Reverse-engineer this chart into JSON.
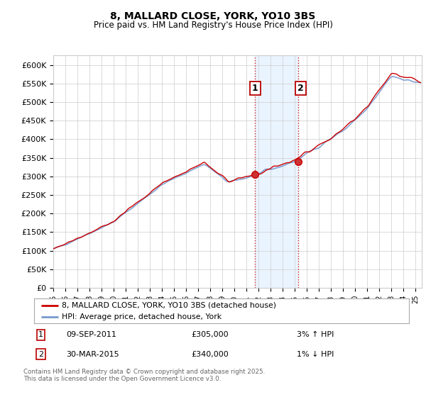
{
  "title": "8, MALLARD CLOSE, YORK, YO10 3BS",
  "subtitle": "Price paid vs. HM Land Registry's House Price Index (HPI)",
  "ylabel_ticks": [
    "£0",
    "£50K",
    "£100K",
    "£150K",
    "£200K",
    "£250K",
    "£300K",
    "£350K",
    "£400K",
    "£450K",
    "£500K",
    "£550K",
    "£600K"
  ],
  "ytick_values": [
    0,
    50000,
    100000,
    150000,
    200000,
    250000,
    300000,
    350000,
    400000,
    450000,
    500000,
    550000,
    600000
  ],
  "ylim": [
    0,
    625000
  ],
  "xlim_start": 1995.0,
  "xlim_end": 2025.5,
  "xtick_labels": [
    "95",
    "96",
    "97",
    "98",
    "99",
    "00",
    "01",
    "02",
    "03",
    "04",
    "05",
    "06",
    "07",
    "08",
    "09",
    "10",
    "11",
    "12",
    "13",
    "14",
    "15",
    "16",
    "17",
    "18",
    "19",
    "20",
    "21",
    "22",
    "23",
    "24",
    "25"
  ],
  "xticks": [
    1995,
    1996,
    1997,
    1998,
    1999,
    2000,
    2001,
    2002,
    2003,
    2004,
    2005,
    2006,
    2007,
    2008,
    2009,
    2010,
    2011,
    2012,
    2013,
    2014,
    2015,
    2016,
    2017,
    2018,
    2019,
    2020,
    2021,
    2022,
    2023,
    2024,
    2025
  ],
  "marker1_x": 2011.69,
  "marker1_y": 305000,
  "marker1_label": "1",
  "marker1_date": "09-SEP-2011",
  "marker1_price": "£305,000",
  "marker1_hpi": "3% ↑ HPI",
  "marker2_x": 2015.25,
  "marker2_y": 340000,
  "marker2_label": "2",
  "marker2_date": "30-MAR-2015",
  "marker2_price": "£340,000",
  "marker2_hpi": "1% ↓ HPI",
  "shade_color": "#ddeeff",
  "shade_alpha": 0.6,
  "red_line_color": "#cc0000",
  "blue_line_color": "#7799cc",
  "dashed_line_color": "#cc0000",
  "legend_label_red": "8, MALLARD CLOSE, YORK, YO10 3BS (detached house)",
  "legend_label_blue": "HPI: Average price, detached house, York",
  "footnote": "Contains HM Land Registry data © Crown copyright and database right 2025.\nThis data is licensed under the Open Government Licence v3.0.",
  "bg_color": "#ffffff",
  "grid_color": "#cccccc"
}
